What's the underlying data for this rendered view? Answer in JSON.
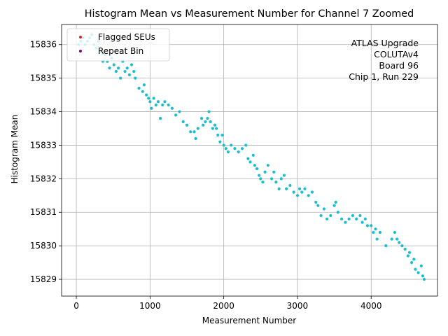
{
  "chart_data": {
    "type": "scatter",
    "title": "Histogram Mean vs Measurement Number for Channel 7 Zoomed",
    "xlabel": "Measurement Number",
    "ylabel": "Histogram Mean",
    "xlim": [
      -200,
      4900
    ],
    "ylim": [
      15828.5,
      15836.6
    ],
    "x_ticks": [
      0,
      1000,
      2000,
      3000,
      4000
    ],
    "y_ticks": [
      15829,
      15830,
      15831,
      15832,
      15833,
      15834,
      15835,
      15836
    ],
    "x_tick_labels": [
      "0",
      "1000",
      "2000",
      "3000",
      "4000"
    ],
    "y_tick_labels": [
      "15829",
      "15830",
      "15831",
      "15832",
      "15833",
      "15834",
      "15835",
      "15836"
    ],
    "grid": true,
    "legend_position": "top-left",
    "legend": [
      {
        "label": "Flagged SEUs",
        "color": "#d62728"
      },
      {
        "label": "Repeat Bin",
        "color": "#800080"
      }
    ],
    "annotation": [
      "ATLAS Upgrade",
      "COLUTAv4",
      "Board 96",
      "Chip 1, Run 229"
    ],
    "series": [
      {
        "color": "#17becf",
        "trend": {
          "x": [
            0,
            500,
            1000,
            1500,
            2000,
            2500,
            3000,
            3500,
            4000,
            4500,
            4720
          ],
          "y": [
            15836.1,
            15835.4,
            15834.4,
            15833.7,
            15833.1,
            15832.1,
            15831.6,
            15831.0,
            15830.6,
            15829.9,
            15829.1
          ]
        },
        "points": [
          [
            30,
            15836.0
          ],
          [
            60,
            15836.1
          ],
          [
            90,
            15836.2
          ],
          [
            120,
            15836.0
          ],
          [
            150,
            15836.1
          ],
          [
            180,
            15836.2
          ],
          [
            210,
            15836.3
          ],
          [
            240,
            15836.0
          ],
          [
            270,
            15835.9
          ],
          [
            300,
            15836.1
          ],
          [
            330,
            15835.8
          ],
          [
            360,
            15835.5
          ],
          [
            390,
            15835.7
          ],
          [
            420,
            15835.5
          ],
          [
            450,
            15835.3
          ],
          [
            480,
            15835.6
          ],
          [
            510,
            15835.4
          ],
          [
            540,
            15835.2
          ],
          [
            570,
            15835.3
          ],
          [
            600,
            15835.0
          ],
          [
            630,
            15835.5
          ],
          [
            660,
            15835.2
          ],
          [
            690,
            15835.3
          ],
          [
            720,
            15835.1
          ],
          [
            750,
            15835.4
          ],
          [
            780,
            15835.2
          ],
          [
            800,
            15835.0
          ],
          [
            850,
            15834.7
          ],
          [
            900,
            15834.6
          ],
          [
            920,
            15834.8
          ],
          [
            950,
            15834.5
          ],
          [
            980,
            15834.4
          ],
          [
            1000,
            15834.3
          ],
          [
            1020,
            15834.1
          ],
          [
            1050,
            15834.4
          ],
          [
            1080,
            15834.2
          ],
          [
            1110,
            15834.3
          ],
          [
            1140,
            15833.8
          ],
          [
            1170,
            15834.2
          ],
          [
            1200,
            15834.3
          ],
          [
            1250,
            15834.2
          ],
          [
            1300,
            15834.1
          ],
          [
            1350,
            15833.9
          ],
          [
            1400,
            15834.0
          ],
          [
            1450,
            15833.7
          ],
          [
            1500,
            15833.6
          ],
          [
            1550,
            15833.4
          ],
          [
            1600,
            15833.4
          ],
          [
            1620,
            15833.2
          ],
          [
            1650,
            15833.5
          ],
          [
            1700,
            15833.8
          ],
          [
            1720,
            15833.6
          ],
          [
            1750,
            15833.7
          ],
          [
            1780,
            15833.8
          ],
          [
            1800,
            15834.0
          ],
          [
            1820,
            15833.7
          ],
          [
            1850,
            15833.5
          ],
          [
            1880,
            15833.6
          ],
          [
            1900,
            15833.5
          ],
          [
            1920,
            15833.3
          ],
          [
            1950,
            15833.1
          ],
          [
            1980,
            15833.3
          ],
          [
            2000,
            15833.0
          ],
          [
            2030,
            15832.9
          ],
          [
            2060,
            15832.8
          ],
          [
            2100,
            15833.0
          ],
          [
            2150,
            15832.9
          ],
          [
            2200,
            15832.8
          ],
          [
            2250,
            15832.9
          ],
          [
            2300,
            15833.0
          ],
          [
            2330,
            15832.6
          ],
          [
            2360,
            15832.5
          ],
          [
            2400,
            15832.7
          ],
          [
            2420,
            15832.4
          ],
          [
            2450,
            15832.3
          ],
          [
            2480,
            15832.1
          ],
          [
            2500,
            15832.0
          ],
          [
            2530,
            15831.9
          ],
          [
            2560,
            15832.2
          ],
          [
            2600,
            15832.4
          ],
          [
            2650,
            15832.0
          ],
          [
            2680,
            15832.2
          ],
          [
            2710,
            15831.9
          ],
          [
            2750,
            15831.7
          ],
          [
            2780,
            15832.0
          ],
          [
            2820,
            15832.1
          ],
          [
            2850,
            15831.7
          ],
          [
            2900,
            15831.8
          ],
          [
            2950,
            15831.6
          ],
          [
            3000,
            15831.5
          ],
          [
            3030,
            15831.7
          ],
          [
            3060,
            15831.6
          ],
          [
            3100,
            15831.7
          ],
          [
            3150,
            15831.5
          ],
          [
            3200,
            15831.6
          ],
          [
            3250,
            15831.3
          ],
          [
            3280,
            15831.2
          ],
          [
            3320,
            15830.9
          ],
          [
            3360,
            15831.1
          ],
          [
            3400,
            15830.8
          ],
          [
            3450,
            15830.9
          ],
          [
            3500,
            15831.2
          ],
          [
            3520,
            15831.3
          ],
          [
            3550,
            15831.0
          ],
          [
            3600,
            15830.8
          ],
          [
            3650,
            15830.7
          ],
          [
            3700,
            15830.8
          ],
          [
            3750,
            15830.9
          ],
          [
            3800,
            15830.8
          ],
          [
            3850,
            15830.9
          ],
          [
            3880,
            15830.7
          ],
          [
            3920,
            15830.8
          ],
          [
            3950,
            15830.6
          ],
          [
            4000,
            15830.6
          ],
          [
            4030,
            15830.4
          ],
          [
            4060,
            15830.5
          ],
          [
            4080,
            15830.2
          ],
          [
            4120,
            15830.4
          ],
          [
            4200,
            15830.0
          ],
          [
            4280,
            15830.2
          ],
          [
            4320,
            15830.4
          ],
          [
            4350,
            15830.2
          ],
          [
            4380,
            15830.1
          ],
          [
            4420,
            15830.0
          ],
          [
            4460,
            15829.9
          ],
          [
            4500,
            15829.7
          ],
          [
            4520,
            15829.8
          ],
          [
            4550,
            15829.5
          ],
          [
            4580,
            15829.6
          ],
          [
            4600,
            15829.3
          ],
          [
            4640,
            15829.2
          ],
          [
            4680,
            15829.4
          ],
          [
            4700,
            15829.1
          ],
          [
            4720,
            15829.0
          ]
        ]
      }
    ]
  }
}
